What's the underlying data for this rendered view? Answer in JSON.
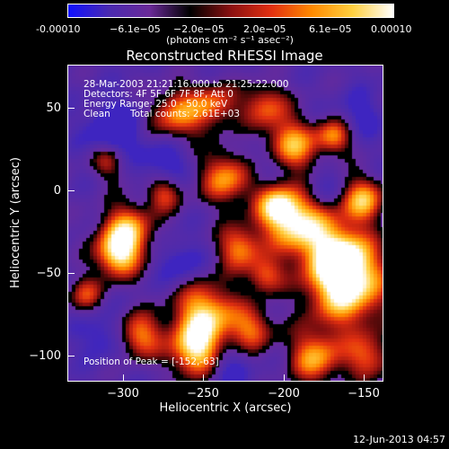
{
  "colorbar": {
    "tick_labels": [
      "-0.00010",
      "−6.1e−05",
      "−2.0e−05",
      "2.0e−05",
      "6.1e−05",
      "0.00010"
    ],
    "units_label": "(photons cm⁻² s⁻¹ asec⁻²)"
  },
  "plot": {
    "title": "Reconstructed RHESSI Image",
    "xlabel": "Heliocentric X (arcsec)",
    "ylabel": "Heliocentric Y (arcsec)",
    "xticks": [
      "−300",
      "−250",
      "−200",
      "−150"
    ],
    "yticks": [
      "50",
      "0",
      "−50",
      "−100"
    ],
    "xlim": [
      -332,
      -136
    ],
    "ylim": [
      -118,
      77
    ]
  },
  "info": {
    "line1": "28-Mar-2003 21:21:16.000 to 21:25:22.000",
    "line2": "Detectors: 4F 5F 6F 7F 8F, Att 0",
    "line3": "Energy Range: 25.0 - 50.0 keV",
    "line4_a": "Clean",
    "line4_b": "Total counts: 2.61E+03",
    "peak": "Position of Peak = [-152,-63]"
  },
  "footer": {
    "timestamp": "12-Jun-2013 04:57"
  },
  "colors": {
    "background": "#000000",
    "colormap": [
      "#1010ff",
      "#4a2ab0",
      "#6a2a98",
      "#000000",
      "#8a1010",
      "#e23010",
      "#ff8a00",
      "#ffd040",
      "#ffffff"
    ]
  }
}
